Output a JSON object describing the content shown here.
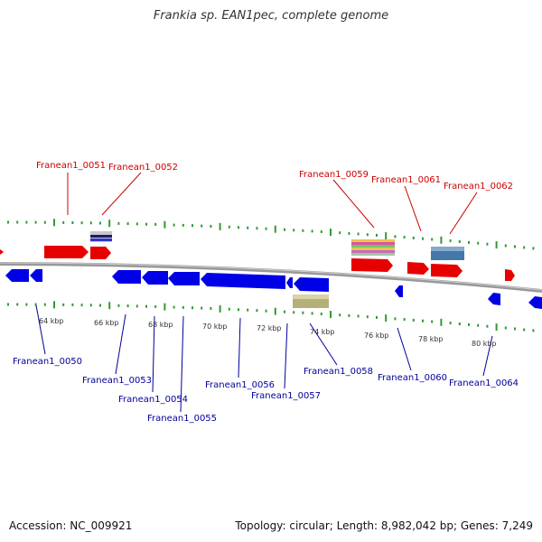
{
  "title": "Frankia sp. EAN1pec, complete genome",
  "accession_text": "Accession: NC_009921",
  "topology_text": "Topology: circular; Length: 8,982,042 bp; Genes: 7,249",
  "colors": {
    "forward": "#e60000",
    "reverse": "#0000e6",
    "label_forward": "#cc0000",
    "label_reverse": "#000099",
    "ruler": "#339933",
    "backbone": "#888888"
  },
  "scale_labels": [
    "64 kbp",
    "66 kbp",
    "68 kbp",
    "70 kbp",
    "72 kbp",
    "74 kbp",
    "76 kbp",
    "78 kbp",
    "80 kbp"
  ],
  "forward_labels": [
    "Franean1_0051",
    "Franean1_0052",
    "Franean1_0059",
    "Franean1_0061",
    "Franean1_0062"
  ],
  "reverse_labels": [
    "Franean1_0050",
    "Franean1_0053",
    "Franean1_0054",
    "Franean1_0055",
    "Franean1_0056",
    "Franean1_0057",
    "Franean1_0058",
    "Franean1_0060",
    "Franean1_0064"
  ]
}
